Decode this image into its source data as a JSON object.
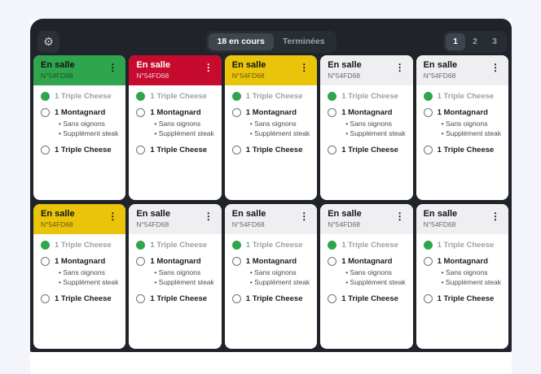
{
  "icons": {
    "settings": "⚙",
    "kebab": "⋮"
  },
  "header": {
    "tabs": [
      {
        "label": "18 en cours",
        "active": true
      },
      {
        "label": "Terminées",
        "active": false
      }
    ],
    "pages": [
      {
        "label": "1",
        "active": true
      },
      {
        "label": "2",
        "active": false
      },
      {
        "label": "3",
        "active": false
      }
    ]
  },
  "colors": {
    "page_bg": "#F3F5FB",
    "app_bg": "#20242A",
    "status_green": "#2FA64D",
    "status_red": "#C60B2E",
    "status_yellow": "#EAC40A",
    "status_default_header": "#EFEFF1",
    "done_item_text": "#9CA1A7"
  },
  "order": {
    "title": "En salle",
    "number": "N°54FD68",
    "items": [
      {
        "label": "1 Triple Cheese",
        "done": true,
        "options": []
      },
      {
        "label": "1 Montagnard",
        "done": false,
        "options": [
          "Sans oignons",
          "Supplément steak"
        ]
      },
      {
        "label": "1 Triple Cheese",
        "done": false,
        "options": []
      }
    ]
  },
  "cards": [
    {
      "status": "green"
    },
    {
      "status": "red"
    },
    {
      "status": "yellow"
    },
    {
      "status": "default"
    },
    {
      "status": "default"
    },
    {
      "status": "yellow"
    },
    {
      "status": "default"
    },
    {
      "status": "default"
    },
    {
      "status": "default"
    },
    {
      "status": "default"
    }
  ]
}
